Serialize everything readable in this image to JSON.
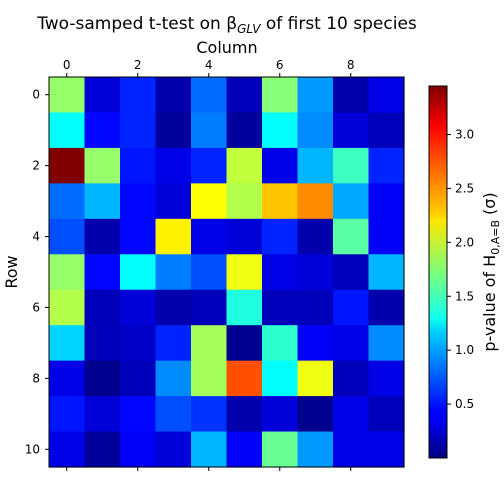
{
  "chart_data": {
    "type": "heatmap",
    "title": "Two-samped t-test on β_GLV of first 10 species",
    "title_main": "Two-samped t-test on β",
    "title_sub": "GLV",
    "title_tail": " of first 10 species",
    "xlabel": "Column",
    "ylabel": "Row",
    "colorbar_label_prefix": "p-value of H",
    "colorbar_label_sub": "0,A=B",
    "colorbar_label_suffix": "(σ)",
    "colorbar_label": "p-value of H_{0,A=B} (σ)",
    "colormap": "jet",
    "vmin": 0.0,
    "vmax": 3.45,
    "x_ticks": [
      0,
      2,
      4,
      6,
      8
    ],
    "y_ticks": [
      0,
      2,
      4,
      6,
      8,
      10
    ],
    "colorbar_ticks": [
      0.5,
      1.0,
      1.5,
      2.0,
      2.5,
      3.0
    ],
    "colorbar_tick_labels": [
      "0.5",
      "1.0",
      "1.5",
      "2.0",
      "2.5",
      "3.0"
    ],
    "n_rows": 11,
    "n_cols": 10,
    "values": [
      [
        1.8,
        0.3,
        0.55,
        0.15,
        0.8,
        0.2,
        1.75,
        0.95,
        0.15,
        0.35
      ],
      [
        1.3,
        0.45,
        0.55,
        0.1,
        0.85,
        0.1,
        1.3,
        0.9,
        0.3,
        0.2
      ],
      [
        3.45,
        1.8,
        0.5,
        0.35,
        0.55,
        1.95,
        0.35,
        1.05,
        1.5,
        0.55
      ],
      [
        0.8,
        1.05,
        0.45,
        0.3,
        2.15,
        1.9,
        2.35,
        2.55,
        1.0,
        0.4
      ],
      [
        0.7,
        0.15,
        0.45,
        2.2,
        0.35,
        0.3,
        0.55,
        0.15,
        1.6,
        0.4
      ],
      [
        1.8,
        0.45,
        1.3,
        0.85,
        0.7,
        2.1,
        0.35,
        0.3,
        0.2,
        1.05
      ],
      [
        1.9,
        0.2,
        0.3,
        0.15,
        0.2,
        1.4,
        0.2,
        0.2,
        0.5,
        0.15
      ],
      [
        1.15,
        0.2,
        0.25,
        0.55,
        1.85,
        0.05,
        1.45,
        0.4,
        0.35,
        0.9
      ],
      [
        0.35,
        0.05,
        0.2,
        0.9,
        1.85,
        2.75,
        1.3,
        2.1,
        0.2,
        0.35
      ],
      [
        0.5,
        0.3,
        0.45,
        0.7,
        0.6,
        0.15,
        0.3,
        0.05,
        0.35,
        0.2
      ],
      [
        0.35,
        0.1,
        0.4,
        0.3,
        1.05,
        0.4,
        1.65,
        0.95,
        0.35,
        0.35
      ]
    ]
  }
}
